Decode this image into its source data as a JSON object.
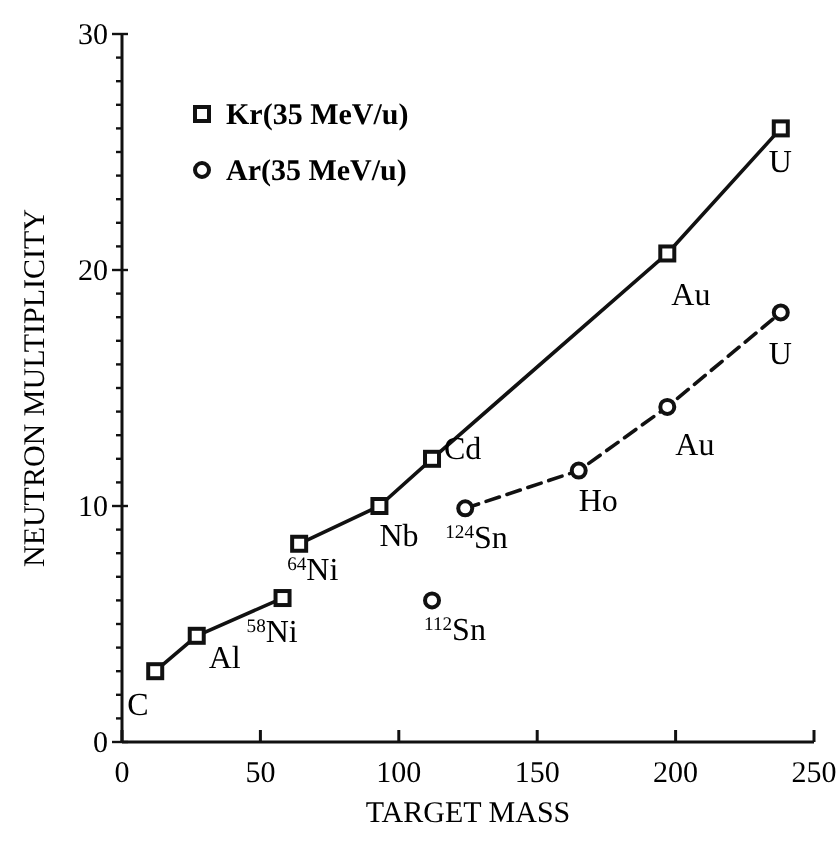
{
  "chart_data": {
    "type": "line",
    "xlabel": "TARGET MASS",
    "ylabel": "NEUTRON MULTIPLICITY",
    "xlim": [
      0,
      250
    ],
    "xticks": [
      0,
      50,
      100,
      150,
      200,
      250
    ],
    "ylim": [
      0,
      30
    ],
    "yticks": [
      0,
      {
        "value": 1,
        "label": null
      },
      {
        "value": 2,
        "label": null
      },
      {
        "value": 3,
        "label": null
      },
      {
        "value": 4,
        "label": null
      },
      {
        "value": 5,
        "label": null
      },
      {
        "value": 6,
        "label": null
      },
      {
        "value": 7,
        "label": null
      },
      {
        "value": 8,
        "label": null
      },
      {
        "value": 9,
        "label": null
      },
      10,
      {
        "value": 11,
        "label": null
      },
      {
        "value": 12,
        "label": null
      },
      {
        "value": 13,
        "label": null
      },
      {
        "value": 14,
        "label": null
      },
      {
        "value": 15,
        "label": null
      },
      {
        "value": 16,
        "label": null
      },
      {
        "value": 17,
        "label": null
      },
      {
        "value": 18,
        "label": null
      },
      {
        "value": 19,
        "label": null
      },
      20,
      {
        "value": 21,
        "label": null
      },
      {
        "value": 22,
        "label": null
      },
      {
        "value": 23,
        "label": null
      },
      {
        "value": 24,
        "label": null
      },
      {
        "value": 25,
        "label": null
      },
      {
        "value": 26,
        "label": null
      },
      {
        "value": 27,
        "label": null
      },
      {
        "value": 28,
        "label": null
      },
      {
        "value": 29,
        "label": null
      },
      30
    ],
    "grid": false,
    "legend": "top left",
    "series": [
      {
        "name": "Kr(35 MeV/u)",
        "color": "#111111",
        "marker": "square",
        "line_style": "solid",
        "x": [
          64,
          93,
          112,
          197,
          238
        ],
        "values": [
          8.4,
          10.0,
          12.0,
          20.7,
          26.0
        ]
      },
      {
        "name": "Ar(35 MeV/u)",
        "color": "#111111",
        "marker": "circle",
        "line_style": "dashed",
        "x": [
          124,
          165,
          197,
          238
        ],
        "values": [
          9.9,
          11.5,
          14.2,
          18.2
        ]
      },
      {
        "color": "#111111",
        "marker": "square",
        "line_style": "solid",
        "x": [
          12,
          27,
          58
        ],
        "values": [
          3.0,
          4.5,
          6.1
        ]
      },
      {
        "type": "scatter",
        "color": "#111111",
        "marker": "circle",
        "x": [
          112
        ],
        "values": [
          6.0
        ]
      }
    ],
    "annotations": [
      {
        "text": "C",
        "x": 12,
        "y": 3.0
      },
      {
        "text": "Al",
        "x": 27,
        "y": 4.5
      },
      {
        "text": "$^{58}$Ni",
        "x": 58,
        "y": 6.1
      },
      {
        "text": "$^{64}$Ni",
        "x": 64,
        "y": 8.4
      },
      {
        "text": "Nb",
        "x": 93,
        "y": 10.0
      },
      {
        "text": "Cd",
        "x": 112,
        "y": 12.0
      },
      {
        "text": "Au",
        "x": 197,
        "y": 20.7
      },
      {
        "text": "U",
        "x": 238,
        "y": 26.0
      },
      {
        "text": "$^{124}$Sn",
        "x": 124,
        "y": 9.9
      },
      {
        "text": "Ho",
        "x": 165,
        "y": 11.5
      },
      {
        "text": "Au",
        "x": 197,
        "y": 14.2
      },
      {
        "text": "U",
        "x": 238,
        "y": 18.2
      },
      {
        "text": "$^{112}$Sn",
        "x": 112,
        "y": 6.0
      }
    ]
  }
}
